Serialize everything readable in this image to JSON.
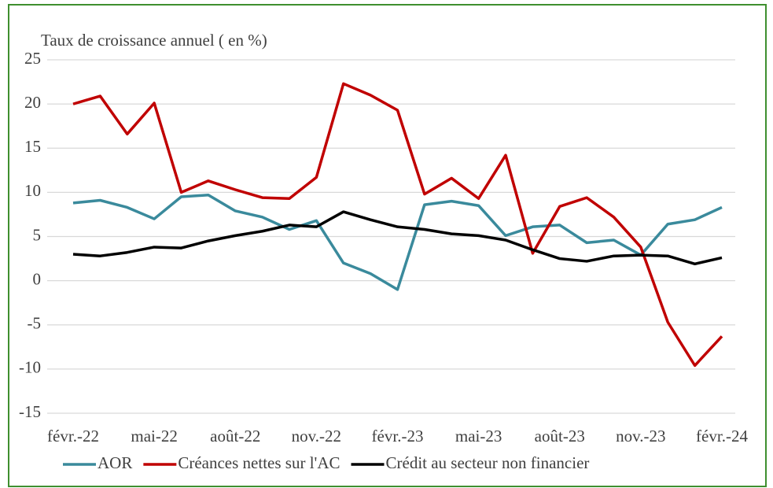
{
  "chart_data": {
    "type": "line",
    "title": "Taux de croissance annuel ( en %)",
    "categories": [
      "févr.-22",
      null,
      null,
      "mai-22",
      null,
      null,
      "août-22",
      null,
      null,
      "nov.-22",
      null,
      null,
      "févr.-23",
      null,
      null,
      "mai-23",
      null,
      null,
      "août-23",
      null,
      null,
      "nov.-23",
      null,
      null,
      "févr.-24"
    ],
    "series": [
      {
        "name": "AOR",
        "color": "#3a8a9c",
        "values": [
          8.8,
          9.1,
          8.3,
          7.0,
          9.5,
          9.7,
          7.9,
          7.2,
          5.8,
          6.8,
          2.0,
          0.8,
          -1.0,
          8.6,
          9.0,
          8.5,
          5.1,
          6.1,
          6.3,
          4.3,
          4.6,
          2.9,
          6.4,
          6.9,
          8.3
        ]
      },
      {
        "name": "Créances nettes sur l'AC",
        "color": "#c00000",
        "values": [
          20.0,
          20.9,
          16.6,
          20.1,
          10.0,
          11.3,
          10.3,
          9.4,
          9.3,
          11.7,
          22.3,
          21.0,
          19.3,
          9.8,
          11.6,
          9.3,
          14.2,
          3.1,
          8.4,
          9.4,
          7.2,
          3.8,
          -4.7,
          -9.6,
          -6.3
        ]
      },
      {
        "name": "Crédit au secteur non financier",
        "color": "#000000",
        "values": [
          3.0,
          2.8,
          3.2,
          3.8,
          3.7,
          4.5,
          5.1,
          5.6,
          6.3,
          6.1,
          7.8,
          6.9,
          6.1,
          5.8,
          5.3,
          5.1,
          4.6,
          3.5,
          2.5,
          2.2,
          2.8,
          2.9,
          2.8,
          1.9,
          2.6
        ]
      }
    ],
    "ylim": [
      -15,
      25
    ],
    "yticks": [
      -15,
      -10,
      -5,
      0,
      5,
      10,
      15,
      20,
      25
    ],
    "grid": true,
    "legend": "bottom"
  }
}
